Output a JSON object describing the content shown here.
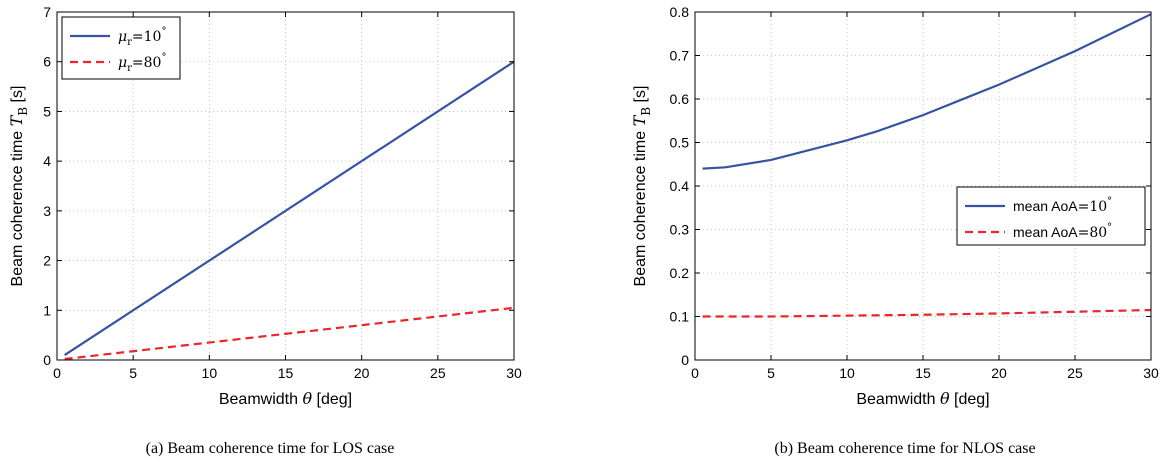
{
  "chart_data": [
    {
      "type": "line",
      "caption": "(a) Beam coherence time for LOS case",
      "xlabel": "Beamwidth θ [deg]",
      "ylabel": "Beam coherence time T_B [s]",
      "xlim": [
        0,
        30
      ],
      "ylim": [
        0,
        7
      ],
      "xticks": [
        0,
        5,
        10,
        15,
        20,
        25,
        30
      ],
      "yticks": [
        0,
        1,
        2,
        3,
        4,
        5,
        6,
        7
      ],
      "grid": true,
      "legend_position": "top-left",
      "series": [
        {
          "name": "μr=10°",
          "legend_main": "μ",
          "legend_sub": "r",
          "legend_value": "=10",
          "legend_sup": "°",
          "color": "#3853a4",
          "dash": "solid",
          "x": [
            0.5,
            30
          ],
          "y": [
            0.1,
            6.0
          ]
        },
        {
          "name": "μr=80°",
          "legend_main": "μ",
          "legend_sub": "r",
          "legend_value": "=80",
          "legend_sup": "°",
          "color": "#e8262b",
          "dash": "dashed",
          "x": [
            0.5,
            30
          ],
          "y": [
            0.02,
            1.05
          ]
        }
      ]
    },
    {
      "type": "line",
      "caption": "(b) Beam coherence time for NLOS case",
      "xlabel": "Beamwidth θ [deg]",
      "ylabel": "Beam coherence time T_B [s]",
      "xlim": [
        0,
        30
      ],
      "ylim": [
        0,
        0.8
      ],
      "xticks": [
        0,
        5,
        10,
        15,
        20,
        25,
        30
      ],
      "yticks": [
        0,
        0.1,
        0.2,
        0.3,
        0.4,
        0.5,
        0.6,
        0.7,
        0.8
      ],
      "grid": true,
      "legend_position": "right",
      "series": [
        {
          "name": "mean AoA=10°",
          "legend_main": "mean AoA",
          "legend_sub": "",
          "legend_value": "=10",
          "legend_sup": "°",
          "color": "#3853a4",
          "dash": "solid",
          "x": [
            0.5,
            2,
            5,
            8,
            10,
            12,
            15,
            18,
            20,
            25,
            30
          ],
          "y": [
            0.44,
            0.443,
            0.46,
            0.487,
            0.505,
            0.526,
            0.563,
            0.605,
            0.633,
            0.71,
            0.795
          ]
        },
        {
          "name": "mean AoA=80°",
          "legend_main": "mean AoA",
          "legend_sub": "",
          "legend_value": "=80",
          "legend_sup": "°",
          "color": "#e8262b",
          "dash": "dashed",
          "x": [
            0.5,
            5,
            10,
            15,
            20,
            25,
            30
          ],
          "y": [
            0.1,
            0.1,
            0.102,
            0.104,
            0.107,
            0.111,
            0.115
          ]
        }
      ]
    }
  ]
}
